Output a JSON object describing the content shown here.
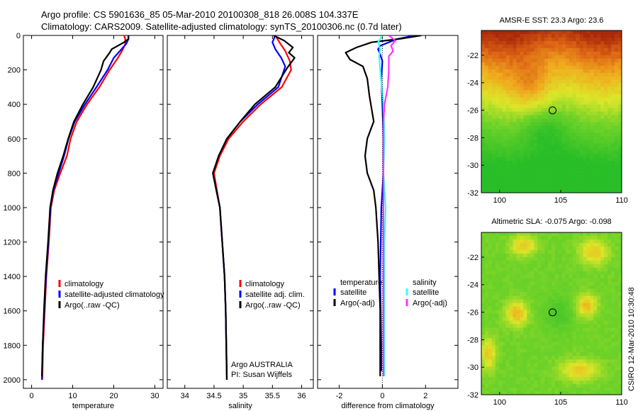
{
  "header": {
    "line1": "Argo profile: CS 5901636_85 05-Mar-2010 20100308_818 26.008S 104.337E",
    "line2": "Climatology: CARS2009. Satellite-adjusted climatology: synTS_20100306.nc (0.7d later)"
  },
  "credits": {
    "argo": "Argo AUSTRALIA",
    "pi": "PI: Susan Wijffels",
    "csiro": "CSIRO 12-Mar-2010 10:30:48"
  },
  "colors": {
    "red": "#ff0000",
    "blue": "#0000ff",
    "black": "#000000",
    "cyan": "#33ffff",
    "magenta": "#ff33ff"
  },
  "chart_data": [
    {
      "type": "line",
      "id": "temperature",
      "xlabel": "temperature",
      "ylabel": "",
      "xlim": [
        -2,
        32
      ],
      "ylim": [
        0,
        2050
      ],
      "y_reversed": true,
      "xticks": [
        0,
        10,
        20,
        30
      ],
      "yticks": [
        0,
        200,
        400,
        600,
        800,
        1000,
        1200,
        1400,
        1600,
        1800,
        2000
      ],
      "legend": {
        "position": "bottom-right",
        "entries": [
          "climatology",
          "satellite-adjusted climatology",
          "Argo(..raw -QC)"
        ]
      },
      "series": [
        {
          "name": "climatology",
          "color": "#ff0000",
          "points": [
            [
              22.5,
              0
            ],
            [
              22.8,
              20
            ],
            [
              22.8,
              50
            ],
            [
              22.0,
              90
            ],
            [
              21.0,
              130
            ],
            [
              19.0,
              200
            ],
            [
              16.5,
              300
            ],
            [
              13.5,
              400
            ],
            [
              11.0,
              500
            ],
            [
              9.5,
              600
            ],
            [
              8.6,
              700
            ],
            [
              7.0,
              800
            ],
            [
              5.5,
              900
            ],
            [
              4.7,
              1000
            ],
            [
              4.2,
              1200
            ],
            [
              3.6,
              1400
            ],
            [
              3.2,
              1600
            ],
            [
              2.8,
              1800
            ],
            [
              2.6,
              2000
            ]
          ]
        },
        {
          "name": "satellite",
          "color": "#0000ff",
          "points": [
            [
              23.5,
              0
            ],
            [
              23.6,
              20
            ],
            [
              23.0,
              50
            ],
            [
              21.5,
              90
            ],
            [
              20.0,
              130
            ],
            [
              18.5,
              200
            ],
            [
              15.8,
              300
            ],
            [
              13.0,
              400
            ],
            [
              10.5,
              500
            ],
            [
              9.0,
              600
            ],
            [
              7.9,
              700
            ],
            [
              6.6,
              800
            ],
            [
              5.3,
              900
            ],
            [
              4.6,
              1000
            ],
            [
              4.1,
              1200
            ],
            [
              3.5,
              1400
            ],
            [
              3.1,
              1600
            ],
            [
              2.7,
              1800
            ],
            [
              2.5,
              2000
            ]
          ]
        },
        {
          "name": "Argo",
          "color": "#000000",
          "points": [
            [
              23.6,
              0
            ],
            [
              23.6,
              20
            ],
            [
              22.5,
              40
            ],
            [
              21.0,
              60
            ],
            [
              19.5,
              80
            ],
            [
              19.0,
              100
            ],
            [
              18.4,
              120
            ],
            [
              17.5,
              150
            ],
            [
              16.9,
              200
            ],
            [
              15.0,
              300
            ],
            [
              12.5,
              400
            ],
            [
              10.3,
              500
            ],
            [
              8.9,
              600
            ],
            [
              7.7,
              700
            ],
            [
              6.3,
              800
            ],
            [
              5.2,
              900
            ],
            [
              4.5,
              1000
            ],
            [
              4.0,
              1200
            ],
            [
              3.4,
              1400
            ],
            [
              3.0,
              1600
            ],
            [
              2.7,
              1800
            ],
            [
              2.5,
              1980
            ]
          ]
        }
      ]
    },
    {
      "type": "line",
      "id": "salinity",
      "xlabel": "salinity",
      "ylabel": "",
      "xlim": [
        33.7,
        36.2
      ],
      "ylim": [
        0,
        2050
      ],
      "y_reversed": true,
      "xticks": [
        34,
        34.5,
        35,
        35.5,
        36
      ],
      "xticklabels": [
        "34",
        "34.5",
        "35",
        "35.5",
        "36"
      ],
      "legend": {
        "position": "bottom-right",
        "entries": [
          "climatology",
          "satellite adj. clim.",
          "Argo(..raw -QC)"
        ]
      },
      "series": [
        {
          "name": "climatology",
          "color": "#ff0000",
          "points": [
            [
              35.55,
              0
            ],
            [
              35.62,
              40
            ],
            [
              35.72,
              90
            ],
            [
              35.8,
              150
            ],
            [
              35.82,
              200
            ],
            [
              35.66,
              300
            ],
            [
              35.3,
              400
            ],
            [
              35.0,
              500
            ],
            [
              34.75,
              600
            ],
            [
              34.6,
              700
            ],
            [
              34.5,
              800
            ],
            [
              34.55,
              900
            ],
            [
              34.6,
              1000
            ],
            [
              34.64,
              1200
            ],
            [
              34.68,
              1400
            ],
            [
              34.7,
              1600
            ],
            [
              34.71,
              1800
            ],
            [
              34.72,
              2000
            ]
          ]
        },
        {
          "name": "satellite",
          "color": "#0000ff",
          "points": [
            [
              35.55,
              0
            ],
            [
              35.5,
              40
            ],
            [
              35.55,
              80
            ],
            [
              35.65,
              130
            ],
            [
              35.72,
              180
            ],
            [
              35.6,
              300
            ],
            [
              35.25,
              400
            ],
            [
              34.95,
              500
            ],
            [
              34.72,
              600
            ],
            [
              34.58,
              700
            ],
            [
              34.48,
              800
            ],
            [
              34.54,
              900
            ],
            [
              34.6,
              1000
            ],
            [
              34.64,
              1200
            ],
            [
              34.68,
              1400
            ],
            [
              34.7,
              1600
            ],
            [
              34.71,
              1800
            ],
            [
              34.72,
              2000
            ]
          ]
        },
        {
          "name": "Argo",
          "color": "#000000",
          "points": [
            [
              35.52,
              0
            ],
            [
              35.7,
              30
            ],
            [
              35.85,
              70
            ],
            [
              35.78,
              100
            ],
            [
              35.88,
              130
            ],
            [
              35.75,
              190
            ],
            [
              35.55,
              300
            ],
            [
              35.2,
              400
            ],
            [
              34.95,
              500
            ],
            [
              34.72,
              600
            ],
            [
              34.58,
              700
            ],
            [
              34.48,
              800
            ],
            [
              34.54,
              900
            ],
            [
              34.6,
              1000
            ],
            [
              34.64,
              1200
            ],
            [
              34.68,
              1400
            ],
            [
              34.7,
              1600
            ],
            [
              34.71,
              1800
            ],
            [
              34.72,
              2000
            ]
          ]
        }
      ]
    },
    {
      "type": "line",
      "id": "difference",
      "xlabel": "difference from climatology",
      "ylabel": "",
      "xlim": [
        -3,
        3.5
      ],
      "ylim": [
        0,
        2050
      ],
      "y_reversed": true,
      "xticks": [
        -2,
        0,
        2
      ],
      "legend": {
        "position": "bottom-center",
        "headers": [
          "temperature",
          "salinity"
        ],
        "entries": [
          "satellite",
          "Argo(-adj)",
          "satellite",
          "Argo(-adj)"
        ]
      },
      "series": [
        {
          "name": "temperature satellite",
          "color": "#0000ff",
          "points": [
            [
              1.5,
              0
            ],
            [
              0.7,
              20
            ],
            [
              0.3,
              40
            ],
            [
              -0.1,
              60
            ],
            [
              -0.2,
              80
            ],
            [
              -0.1,
              110
            ],
            [
              0.0,
              150
            ],
            [
              -0.05,
              250
            ],
            [
              0.0,
              400
            ],
            [
              0.05,
              600
            ],
            [
              0.05,
              800
            ],
            [
              -0.05,
              1000
            ],
            [
              -0.1,
              1400
            ],
            [
              -0.05,
              1800
            ],
            [
              -0.05,
              1950
            ]
          ]
        },
        {
          "name": "temperature Argo(-adj)",
          "color": "#000000",
          "points": [
            [
              1.8,
              0
            ],
            [
              0.8,
              20
            ],
            [
              -0.5,
              40
            ],
            [
              -1.2,
              70
            ],
            [
              -1.7,
              100
            ],
            [
              -1.5,
              140
            ],
            [
              -0.9,
              180
            ],
            [
              -0.7,
              250
            ],
            [
              -0.6,
              350
            ],
            [
              -0.4,
              500
            ],
            [
              -0.7,
              600
            ],
            [
              -0.8,
              700
            ],
            [
              -0.7,
              800
            ],
            [
              -0.4,
              900
            ],
            [
              -0.3,
              1000
            ],
            [
              -0.2,
              1200
            ],
            [
              -0.15,
              1400
            ],
            [
              -0.1,
              1600
            ],
            [
              -0.1,
              1800
            ],
            [
              -0.1,
              1980
            ]
          ]
        },
        {
          "name": "salinity satellite",
          "color": "#33ffff",
          "points": [
            [
              0.0,
              0
            ],
            [
              -0.2,
              40
            ],
            [
              -0.1,
              80
            ],
            [
              -0.15,
              120
            ],
            [
              -0.1,
              200
            ],
            [
              0.05,
              400
            ],
            [
              0.1,
              600
            ],
            [
              0.05,
              800
            ],
            [
              0.15,
              1000
            ],
            [
              0.1,
              1200
            ],
            [
              0.1,
              1400
            ],
            [
              0.1,
              1600
            ],
            [
              0.1,
              1800
            ],
            [
              0.1,
              1980
            ]
          ]
        },
        {
          "name": "salinity Argo(-adj)",
          "color": "#ff33ff",
          "points": [
            [
              0.3,
              0
            ],
            [
              0.6,
              30
            ],
            [
              0.4,
              60
            ],
            [
              0.5,
              90
            ],
            [
              0.3,
              120
            ],
            [
              0.3,
              200
            ],
            [
              0.25,
              300
            ],
            [
              0.1,
              400
            ],
            [
              0.05,
              500
            ],
            [
              0.05,
              700
            ],
            [
              0.05,
              900
            ],
            [
              0.05,
              1100
            ],
            [
              0.05,
              1400
            ],
            [
              0.05,
              1700
            ],
            [
              0.05,
              1980
            ]
          ]
        },
        {
          "name": "zero reference",
          "color": "#000000",
          "style": "dotted",
          "points": [
            [
              0,
              0
            ],
            [
              0,
              2050
            ]
          ]
        }
      ]
    },
    {
      "type": "heatmap",
      "id": "sst",
      "title": "AMSR-E SST: 23.3 Argo: 23.6",
      "xlim": [
        98.5,
        110
      ],
      "ylim": [
        -32,
        -20.2
      ],
      "xticks": [
        100,
        105,
        110
      ],
      "yticks": [
        -22,
        -24,
        -26,
        -28,
        -30,
        -32
      ],
      "marker": [
        104.337,
        -26.008
      ],
      "colorscale": "red-orange-yellow-green"
    },
    {
      "type": "heatmap",
      "id": "sla",
      "title": "Altimetric SLA: -0.075 Argo: -0.098",
      "xlim": [
        98.5,
        110
      ],
      "ylim": [
        -32,
        -20.2
      ],
      "xticks": [
        100,
        105,
        110
      ],
      "yticks": [
        -22,
        -24,
        -26,
        -28,
        -30,
        -32
      ],
      "marker": [
        104.337,
        -26.008
      ],
      "colorscale": "green-yellow-red"
    }
  ]
}
